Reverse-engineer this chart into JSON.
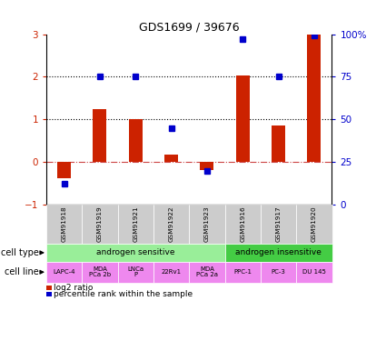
{
  "title": "GDS1699 / 39676",
  "samples": [
    "GSM91918",
    "GSM91919",
    "GSM91921",
    "GSM91922",
    "GSM91923",
    "GSM91916",
    "GSM91917",
    "GSM91920"
  ],
  "log2_ratio": [
    -0.38,
    1.25,
    1.0,
    0.18,
    -0.18,
    2.02,
    0.85,
    3.0
  ],
  "percentile_rank": [
    12.5,
    75.0,
    75.0,
    45.0,
    20.0,
    97.0,
    75.0,
    99.0
  ],
  "ylim_left": [
    -1,
    3
  ],
  "ylim_right": [
    0,
    100
  ],
  "bar_color": "#cc2200",
  "dot_color": "#0000cc",
  "cell_type_groups": [
    {
      "label": "androgen sensitive",
      "start": 0,
      "end": 5,
      "color": "#99ee99"
    },
    {
      "label": "androgen insensitive",
      "start": 5,
      "end": 8,
      "color": "#44cc44"
    }
  ],
  "cell_lines": [
    "LAPC-4",
    "MDA\nPCa 2b",
    "LNCa\nP",
    "22Rv1",
    "MDA\nPCa 2a",
    "PPC-1",
    "PC-3",
    "DU 145"
  ],
  "cell_line_color": "#ee88ee",
  "gsm_color": "#cccccc",
  "left_label": "cell type",
  "left_label2": "cell line",
  "legend_red": "log2 ratio",
  "legend_blue": "percentile rank within the sample",
  "dotted_line_values": [
    1,
    2
  ],
  "zero_line_color": "#cc4444",
  "tick_right": [
    0,
    25,
    50,
    75,
    100
  ],
  "tick_left": [
    -1,
    0,
    1,
    2,
    3
  ],
  "left_tick_color": "#cc2200",
  "right_tick_color": "#0000cc"
}
